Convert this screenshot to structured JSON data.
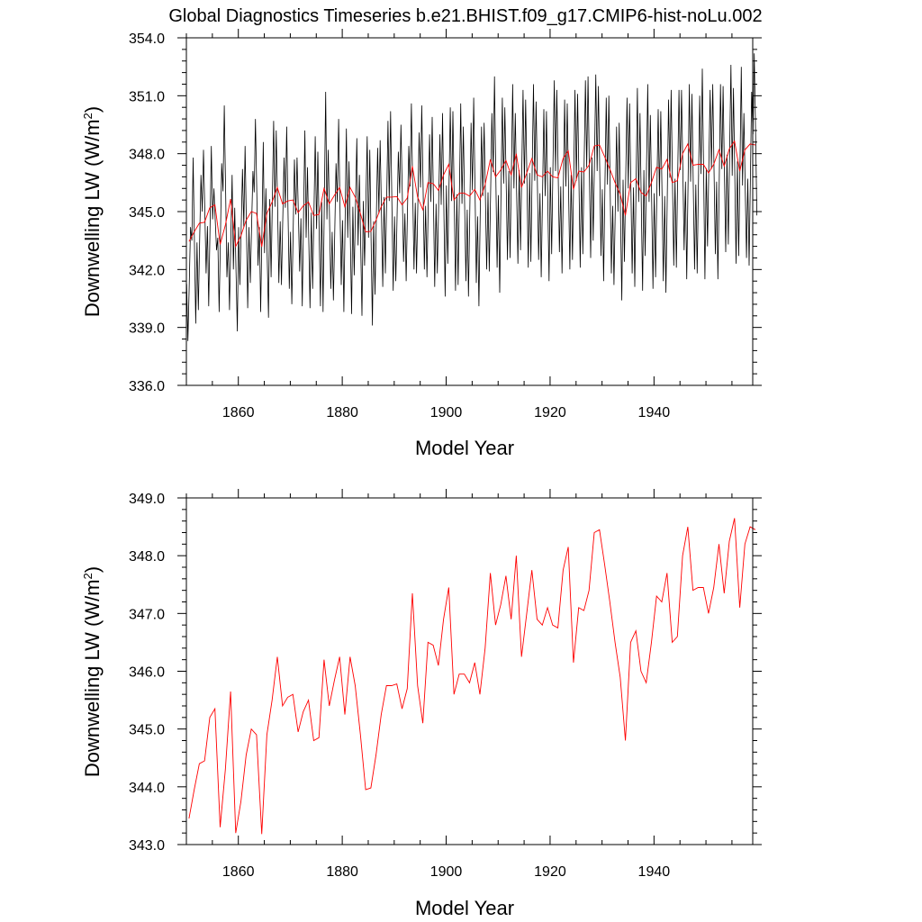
{
  "title": "Global Diagnostics Timeseries b.e21.BHIST.f09_g17.CMIP6-hist-noLu.002",
  "colors": {
    "monthly": "#000000",
    "annual": "#ff0000",
    "axis": "#000000"
  },
  "chart_data": [
    {
      "type": "line",
      "title": "",
      "xlabel": "Model Year",
      "ylabel_main": "Downwelling LW (W/m",
      "ylabel_sup": "2",
      "ylabel_close": ")",
      "xlim": [
        1850,
        1959
      ],
      "ylim": [
        336.0,
        354.0
      ],
      "x_ticks": [
        1860,
        1880,
        1900,
        1920,
        1940
      ],
      "x_tick_labels": [
        "1860",
        "1880",
        "1900",
        "1920",
        "1940"
      ],
      "y_ticks": [
        336,
        339,
        342,
        345,
        348,
        351,
        354
      ],
      "y_tick_labels": [
        "336.0",
        "339.0",
        "342.0",
        "345.0",
        "348.0",
        "351.0",
        "354.0"
      ],
      "grid": false,
      "series": [
        {
          "kind": "monthly",
          "monthly_min": [
            338.3,
            339.2,
            339.9,
            341.8,
            340.1,
            343.0,
            339.8,
            341.6,
            339.9,
            338.8,
            341.2,
            340.0,
            341.3,
            342.2,
            339.8,
            339.5,
            341.6,
            341.3,
            341.2,
            341.0,
            340.2,
            341.9,
            340.1,
            340.0,
            341.0,
            340.1,
            339.8,
            341.0,
            340.4,
            341.2,
            339.8,
            339.7,
            341.7,
            339.6,
            342.2,
            339.1,
            340.7,
            341.1,
            341.8,
            340.9,
            341.4,
            342.4,
            341.4,
            342.0,
            341.8,
            342.0,
            341.6,
            341.1,
            341.8,
            340.6,
            342.3,
            340.9,
            341.2,
            341.4,
            340.6,
            341.3,
            340.1,
            342.0,
            341.9,
            342.1,
            340.8,
            342.5,
            342.6,
            342.3,
            343.0,
            342.1,
            342.4,
            342.5,
            341.6,
            341.4,
            342.8,
            342.9,
            341.8,
            342.0,
            342.5,
            342.1,
            342.8,
            342.6,
            343.5,
            342.7,
            341.4,
            341.8,
            341.2,
            340.4,
            342.4,
            341.8,
            341.1,
            340.9,
            342.7,
            341.0,
            341.6,
            341.4,
            340.8,
            342.2,
            342.1,
            343.0,
            341.5,
            342.0,
            341.8,
            341.5,
            343.2,
            342.8,
            341.5,
            342.9,
            343.3,
            342.3,
            342.7,
            342.6,
            342.2,
            344.8
          ],
          "monthly_max": [
            344.2,
            347.8,
            346.9,
            348.2,
            348.4,
            346.2,
            347.5,
            350.5,
            346.9,
            345.2,
            347.2,
            348.4,
            347.1,
            349.8,
            348.6,
            346.2,
            349.7,
            349.2,
            347.8,
            349.4,
            347.7,
            347.8,
            349.2,
            347.3,
            348.9,
            348.1,
            351.2,
            348.2,
            347.5,
            349.8,
            349.3,
            347.6,
            348.8,
            346.9,
            348.9,
            348.2,
            348.3,
            348.7,
            349.7,
            350.2,
            348.1,
            349.5,
            348.4,
            350.6,
            349.1,
            350.5,
            349.0,
            349.9,
            349.0,
            350.1,
            350.4,
            350.2,
            350.6,
            349.4,
            349.6,
            350.9,
            349.4,
            349.6,
            350.1,
            352.0,
            350.9,
            350.4,
            351.6,
            350.1,
            351.3,
            350.8,
            351.6,
            350.7,
            350.3,
            350.2,
            351.8,
            351.3,
            350.8,
            350.6,
            351.3,
            351.1,
            351.8,
            352.0,
            352.1,
            351.5,
            350.9,
            351.0,
            349.4,
            349.6,
            350.9,
            350.6,
            351.4,
            350.1,
            351.6,
            350.0,
            350.3,
            350.2,
            350.8,
            351.3,
            351.3,
            351.3,
            351.6,
            351.1,
            351.0,
            352.4,
            351.3,
            351.6,
            351.6,
            351.5,
            352.6,
            351.4,
            352.5,
            350.1,
            351.2,
            353.2
          ]
        },
        {
          "kind": "annual",
          "x_start": 1850,
          "values": [
            343.45,
            343.95,
            344.4,
            344.45,
            345.2,
            345.35,
            343.3,
            344.3,
            345.65,
            343.2,
            343.75,
            344.55,
            345.0,
            344.9,
            343.18,
            344.9,
            345.5,
            346.25,
            345.4,
            345.55,
            345.6,
            344.95,
            345.3,
            345.5,
            344.8,
            344.85,
            346.2,
            345.4,
            345.85,
            346.25,
            345.25,
            346.25,
            345.75,
            344.9,
            343.95,
            343.98,
            344.55,
            345.25,
            345.75,
            345.75,
            345.78,
            345.35,
            345.7,
            347.35,
            345.75,
            345.1,
            346.5,
            346.45,
            346.1,
            346.9,
            347.45,
            345.6,
            345.95,
            345.95,
            345.8,
            346.15,
            345.6,
            346.4,
            347.7,
            346.8,
            347.15,
            347.65,
            346.9,
            348.0,
            346.25,
            347.0,
            347.75,
            346.9,
            346.8,
            347.1,
            346.8,
            346.75,
            347.75,
            348.15,
            346.15,
            347.1,
            347.05,
            347.4,
            348.4,
            348.45,
            347.85,
            347.2,
            346.5,
            345.9,
            344.8,
            346.5,
            346.7,
            346.0,
            345.8,
            346.5,
            347.3,
            347.2,
            347.7,
            346.5,
            346.6,
            348.0,
            348.5,
            347.4,
            347.45,
            347.45,
            347.0,
            347.45,
            348.2,
            347.35,
            348.25,
            348.65,
            347.1,
            348.2,
            348.5,
            348.45
          ]
        }
      ]
    },
    {
      "type": "line",
      "title": "",
      "xlabel": "Model Year",
      "ylabel_main": "Downwelling LW (W/m",
      "ylabel_sup": "2",
      "ylabel_close": ")",
      "xlim": [
        1850,
        1959
      ],
      "ylim": [
        343.0,
        349.0
      ],
      "x_ticks": [
        1860,
        1880,
        1900,
        1920,
        1940
      ],
      "x_tick_labels": [
        "1860",
        "1880",
        "1900",
        "1920",
        "1940"
      ],
      "y_ticks": [
        343,
        344,
        345,
        346,
        347,
        348,
        349
      ],
      "y_tick_labels": [
        "343.0",
        "344.0",
        "345.0",
        "346.0",
        "347.0",
        "348.0",
        "349.0"
      ],
      "grid": false,
      "series": [
        {
          "kind": "annual",
          "x_start": 1850,
          "use_series_from_panel": 0
        }
      ]
    }
  ]
}
